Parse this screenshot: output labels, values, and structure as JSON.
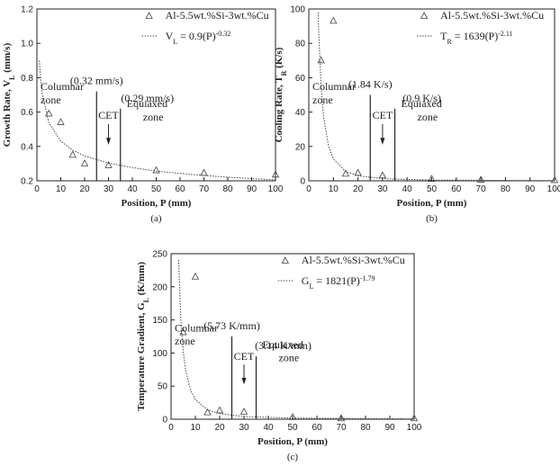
{
  "chart_data": [
    {
      "type": "scatter",
      "panel_label": "(a)",
      "x_label": "Position, P (mm)",
      "y_label": [
        "Growth Rate, V",
        "L",
        " (mm/s)"
      ],
      "xlim": [
        0,
        100
      ],
      "xticks": [
        0,
        10,
        20,
        30,
        40,
        50,
        60,
        70,
        80,
        90,
        100
      ],
      "ylim": [
        0.2,
        1.2
      ],
      "yticks": [
        0.2,
        0.4,
        0.6,
        0.8,
        {
          "value": 1,
          "label": "1.0"
        },
        1.2
      ],
      "series": [
        {
          "name": "Al-5.5wt.%Si-3wt.%Cu",
          "color": "#444444",
          "x": [
            5,
            10,
            15,
            20,
            30,
            50,
            70,
            100
          ],
          "values": [
            0.59,
            0.54,
            0.35,
            0.3,
            0.29,
            0.26,
            0.245,
            0.235
          ]
        },
        {
          "name": [
            "V",
            "L",
            " = 0.9(P)",
            "-0.32"
          ],
          "color": "#444444",
          "x": [
            1,
            2,
            5,
            10,
            15,
            20,
            30,
            40,
            50,
            60,
            70,
            80,
            90,
            100
          ],
          "values": [
            0.9,
            0.721,
            0.538,
            0.431,
            0.378,
            0.345,
            0.303,
            0.277,
            0.257,
            0.243,
            0.231,
            0.221,
            0.213,
            0.206
          ]
        }
      ],
      "cet_bounds": [
        {
          "x": 25,
          "top": 0.72
        },
        {
          "x": 35,
          "top": 0.62
        }
      ],
      "annotations": {
        "left_value": "(0.32 mm/s)",
        "right_value": "(0.29 mm/s)",
        "columnar": [
          "Columnar",
          "zone"
        ],
        "cet": "CET",
        "equiaxed": [
          "Equiaxed",
          "zone"
        ]
      }
    },
    {
      "type": "scatter",
      "panel_label": "(b)",
      "x_label": "Position, P (mm)",
      "y_label": [
        "Cooling Rate, T",
        "R",
        " (K/s)"
      ],
      "xlim": [
        0,
        100
      ],
      "xticks": [
        0,
        10,
        20,
        30,
        40,
        50,
        60,
        70,
        80,
        90,
        100
      ],
      "ylim": [
        0,
        100
      ],
      "yticks": [
        0,
        20,
        40,
        60,
        80,
        100
      ],
      "series": [
        {
          "name": "Al-5.5wt.%Si-3wt.%Cu",
          "color": "#444444",
          "x": [
            5,
            10,
            15,
            20,
            30,
            50,
            70,
            100
          ],
          "values": [
            70,
            93,
            4,
            4.5,
            3,
            1,
            0.5,
            0.3
          ]
        },
        {
          "name": [
            "T",
            "R",
            " = 1639(P)",
            "-2.11"
          ],
          "color": "#444444",
          "x": [
            3.8,
            4,
            5,
            6,
            8,
            10,
            15,
            20,
            30,
            50,
            100
          ],
          "values": [
            98,
            88,
            54.9,
            37.4,
            20.4,
            12.7,
            5.41,
            2.95,
            1.25,
            0.43,
            0.1
          ]
        }
      ],
      "cet_bounds": [
        {
          "x": 25,
          "top": 50
        },
        {
          "x": 35,
          "top": 42
        }
      ],
      "annotations": {
        "left_value": "(1.84 K/s)",
        "right_value": "(0.9 K/s)",
        "columnar": [
          "Columnar",
          "zone"
        ],
        "cet": "CET",
        "equiaxed": [
          "Equiaxed",
          "zone"
        ]
      }
    },
    {
      "type": "scatter",
      "panel_label": "(c)",
      "x_label": "Position, P (mm)",
      "y_label": [
        "Temperature Gradient, G",
        "L",
        " (K/mm)"
      ],
      "xlim": [
        0,
        100
      ],
      "xticks": [
        0,
        10,
        20,
        30,
        40,
        50,
        60,
        70,
        80,
        90,
        100
      ],
      "ylim": [
        0,
        250
      ],
      "yticks": [
        0,
        50,
        100,
        150,
        200,
        250
      ],
      "series": [
        {
          "name": "Al-5.5wt.%Si-3wt.%Cu",
          "color": "#444444",
          "x": [
            5,
            10,
            15,
            20,
            30,
            50,
            70,
            100
          ],
          "values": [
            131,
            215,
            10,
            13,
            11,
            3,
            1,
            1
          ]
        },
        {
          "name": [
            "G",
            "L",
            " = 1821(P)",
            "-1.79"
          ],
          "color": "#444444",
          "x": [
            3.1,
            4,
            5,
            6,
            8,
            10,
            15,
            20,
            30,
            50,
            100
          ],
          "values": [
            240.4,
            152.4,
            102.2,
            73.7,
            44,
            29.5,
            14.3,
            8.5,
            4.1,
            1.66,
            0.48
          ]
        }
      ],
      "cet_bounds": [
        {
          "x": 25,
          "top": 125
        },
        {
          "x": 35,
          "top": 95
        }
      ],
      "annotations": {
        "left_value": "(5.73 K/mm)",
        "right_value": "(3.14 K/mm)",
        "columnar": [
          "Columnar",
          "zone"
        ],
        "cet": "CET",
        "equiaxed": [
          "Equiaxed",
          "zone"
        ]
      }
    }
  ]
}
